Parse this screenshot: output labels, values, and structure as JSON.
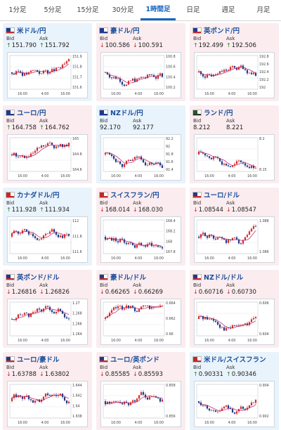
{
  "tabs": [
    {
      "label": "1分足",
      "active": false
    },
    {
      "label": "5分足",
      "active": false
    },
    {
      "label": "15分足",
      "active": false
    },
    {
      "label": "30分足",
      "active": false
    },
    {
      "label": "1時間足",
      "active": true
    },
    {
      "label": "日足",
      "active": false
    },
    {
      "label": "週足",
      "active": false
    },
    {
      "label": "月足",
      "active": false
    }
  ],
  "colors": {
    "accent": "#1565c0",
    "up_card": "#e9f3fb",
    "down_card": "#fbecef",
    "candle_up": "#d32f2f",
    "candle_down": "#1e3a8a",
    "ma": "#c2185b"
  },
  "labels": {
    "bid": "Bid",
    "ask": "Ask"
  },
  "x_ticks": [
    "16:00",
    "4:00",
    "16:00"
  ],
  "pairs": [
    {
      "name": "米ドル/円",
      "dir": "up",
      "bid": "151.790",
      "ask": "151.792",
      "bid_arrow": "up",
      "ask_arrow": "up",
      "flag": "us",
      "yticks": [
        "151.9",
        "151.8",
        "151.7",
        "151.6"
      ],
      "ymin": 151.55,
      "ymax": 151.95,
      "seed": 3
    },
    {
      "name": "豪ドル/円",
      "dir": "down",
      "bid": "100.586",
      "ask": "100.591",
      "bid_arrow": "down",
      "ask_arrow": "down",
      "flag": "au",
      "yticks": [
        "100.8",
        "100.6",
        "100.4",
        "100.2"
      ],
      "ymin": 100.1,
      "ymax": 100.9,
      "seed": 7
    },
    {
      "name": "英ポンド/円",
      "dir": "down",
      "bid": "192.499",
      "ask": "192.506",
      "bid_arrow": "up",
      "ask_arrow": "up",
      "flag": "gb",
      "yticks": [
        "192.8",
        "192.6",
        "192.4",
        "192.2",
        "192"
      ],
      "ymin": 191.9,
      "ymax": 192.9,
      "seed": 11
    },
    {
      "name": "ユーロ/円",
      "dir": "down",
      "bid": "164.758",
      "ask": "164.762",
      "bid_arrow": "up",
      "ask_arrow": "up",
      "flag": "eu",
      "yticks": [
        "165",
        "164.8",
        "164.6"
      ],
      "ymin": 164.5,
      "ymax": 165.1,
      "seed": 5
    },
    {
      "name": "NZドル/円",
      "dir": "up",
      "bid": "92.170",
      "ask": "92.177",
      "bid_arrow": "",
      "ask_arrow": "",
      "flag": "nz",
      "yticks": [
        "92.2",
        "92",
        "91.8",
        "91.6",
        "91.4"
      ],
      "ymin": 91.35,
      "ymax": 92.3,
      "seed": 13
    },
    {
      "name": "ランド/円",
      "dir": "down",
      "bid": "8.212",
      "ask": "8.221",
      "bid_arrow": "",
      "ask_arrow": "",
      "flag": "za",
      "yticks": [
        "8.2",
        "8.15"
      ],
      "ymin": 8.13,
      "ymax": 8.24,
      "seed": 17
    },
    {
      "name": "カナダドル/円",
      "dir": "up",
      "bid": "111.928",
      "ask": "111.934",
      "bid_arrow": "up",
      "ask_arrow": "up",
      "flag": "ca",
      "yticks": [
        "112",
        "111.8",
        "111.6"
      ],
      "ymin": 111.5,
      "ymax": 112.1,
      "seed": 19
    },
    {
      "name": "スイスフラン/円",
      "dir": "down",
      "bid": "168.014",
      "ask": "168.030",
      "bid_arrow": "down",
      "ask_arrow": "down",
      "flag": "ch",
      "yticks": [
        "168.4",
        "168.2",
        "168",
        "167.8"
      ],
      "ymin": 167.7,
      "ymax": 168.5,
      "seed": 23
    },
    {
      "name": "ユーロ/ドル",
      "dir": "down",
      "bid": "1.08544",
      "ask": "1.08547",
      "bid_arrow": "down",
      "ask_arrow": "down",
      "flag": "us",
      "yticks": [
        "1.088",
        "1.086"
      ],
      "ymin": 1.084,
      "ymax": 1.089,
      "seed": 29
    },
    {
      "name": "英ポンド/ドル",
      "dir": "down",
      "bid": "1.26816",
      "ask": "1.26826",
      "bid_arrow": "down",
      "ask_arrow": "down",
      "flag": "us",
      "yticks": [
        "1.27",
        "1.268",
        "1.266",
        "1.264"
      ],
      "ymin": 1.263,
      "ymax": 1.271,
      "seed": 31
    },
    {
      "name": "豪ドル/ドル",
      "dir": "down",
      "bid": "0.66265",
      "ask": "0.66269",
      "bid_arrow": "down",
      "ask_arrow": "down",
      "flag": "us",
      "yticks": [
        "0.664",
        "0.662",
        "0.66"
      ],
      "ymin": 0.659,
      "ymax": 0.665,
      "seed": 37
    },
    {
      "name": "NZドル/ドル",
      "dir": "down",
      "bid": "0.60716",
      "ask": "0.60730",
      "bid_arrow": "down",
      "ask_arrow": "down",
      "flag": "us",
      "yticks": [
        "0.606",
        "0.604"
      ],
      "ymin": 0.603,
      "ymax": 0.607,
      "seed": 41
    },
    {
      "name": "ユーロ/豪ドル",
      "dir": "down",
      "bid": "1.63788",
      "ask": "1.63802",
      "bid_arrow": "down",
      "ask_arrow": "down",
      "flag": "us",
      "yticks": [
        "1.644",
        "1.642",
        "1.64",
        "1.638"
      ],
      "ymin": 1.637,
      "ymax": 1.645,
      "seed": 43
    },
    {
      "name": "ユーロ/英ポンド",
      "dir": "down",
      "bid": "0.85585",
      "ask": "0.85593",
      "bid_arrow": "down",
      "ask_arrow": "down",
      "flag": "us",
      "yticks": [
        "0.858",
        "0.856"
      ],
      "ymin": 0.855,
      "ymax": 0.859,
      "seed": 47
    },
    {
      "name": "米ドル/スイスフラン",
      "dir": "up",
      "bid": "0.90331",
      "ask": "0.90346",
      "bid_arrow": "up",
      "ask_arrow": "up",
      "flag": "ch",
      "yticks": [
        "0.904",
        "0.902"
      ],
      "ymin": 0.901,
      "ymax": 0.905,
      "seed": 53
    }
  ]
}
